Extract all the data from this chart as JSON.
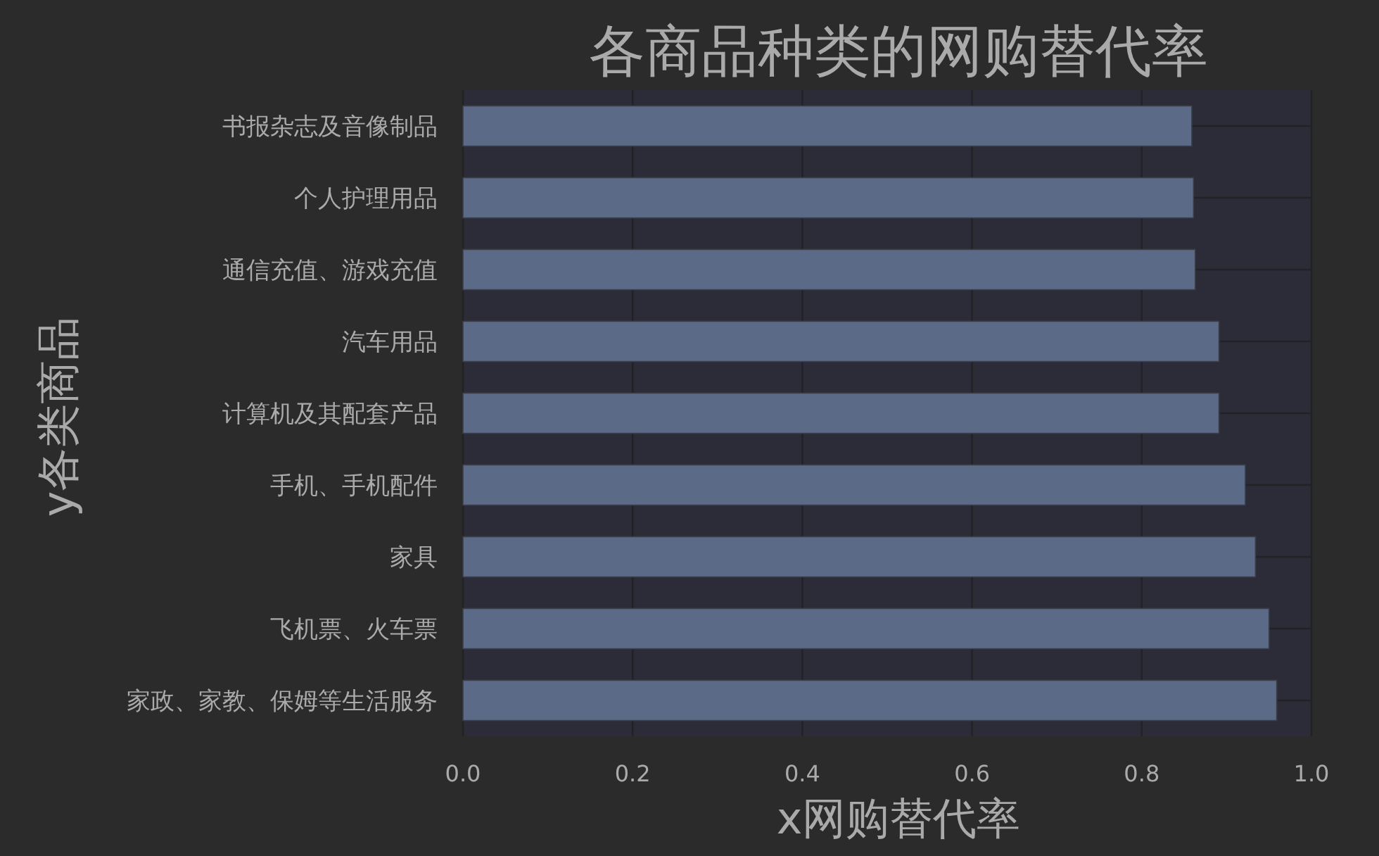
{
  "chart_data": {
    "type": "bar",
    "orientation": "horizontal",
    "title": "各商品种类的网购替代率",
    "xlabel": "x网购替代率",
    "ylabel": "y各类商品",
    "categories": [
      "书报杂志及音像制品",
      "个人护理用品",
      "通信充值、游戏充值",
      "汽车用品",
      "计算机及其配套产品",
      "手机、手机配件",
      "家具",
      "飞机票、火车票",
      "家政、家教、保姆等生活服务"
    ],
    "values": [
      0.859,
      0.861,
      0.863,
      0.891,
      0.891,
      0.922,
      0.934,
      0.95,
      0.959
    ],
    "color": "#5b6b87",
    "xlim": [
      0,
      1
    ],
    "xticks": [
      {
        "value": 0,
        "label": "0.0"
      },
      {
        "value": 0.2,
        "label": "0.2"
      },
      {
        "value": 0.4,
        "label": "0.4"
      },
      {
        "value": 0.6,
        "label": "0.6"
      },
      {
        "value": 0.8,
        "label": "0.8"
      },
      {
        "value": 1,
        "label": "1.0"
      }
    ],
    "grid": true
  }
}
